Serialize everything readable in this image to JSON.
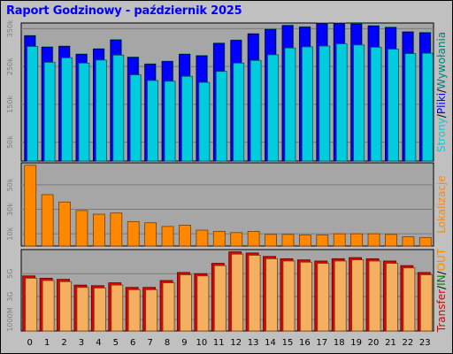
{
  "title": "Raport Godzinowy -  październik 2025",
  "colors": {
    "background": "#c0c0c0",
    "plot_bg": "#a6a6a6",
    "strony": "#00ccdd",
    "pliki": "#0000ff",
    "wywolania": "#008080",
    "lokalizacje": "#ff8800",
    "transfer": "#e00000",
    "in": "#008000",
    "out": "#ff8800",
    "transfer_bar": "#f4b060"
  },
  "legend_top": [
    {
      "text": "Strony",
      "color": "#00ccdd"
    },
    {
      "text": "/",
      "color": "#000000"
    },
    {
      "text": "Pliki",
      "color": "#0000ff"
    },
    {
      "text": "/",
      "color": "#000000"
    },
    {
      "text": "Wywołania",
      "color": "#008080"
    }
  ],
  "legend_mid": [
    {
      "text": "Lokalizacje",
      "color": "#ff8800"
    }
  ],
  "legend_bot": [
    {
      "text": "Transfer",
      "color": "#e00000"
    },
    {
      "text": "/",
      "color": "#000000"
    },
    {
      "text": "IN",
      "color": "#008000"
    },
    {
      "text": "/",
      "color": "#000000"
    },
    {
      "text": "OUT",
      "color": "#ff8800"
    }
  ],
  "chart_data": [
    {
      "type": "bar",
      "panel": "top",
      "categories": [
        "0",
        "1",
        "2",
        "3",
        "4",
        "5",
        "6",
        "7",
        "8",
        "9",
        "10",
        "11",
        "12",
        "13",
        "14",
        "15",
        "16",
        "17",
        "18",
        "19",
        "20",
        "21",
        "22",
        "23"
      ],
      "yticks": [
        "50k",
        "150k",
        "250k",
        "350k"
      ],
      "ylim": [
        0,
        365000
      ],
      "series": [
        {
          "name": "Wywołania",
          "values": [
            333000,
            303000,
            305000,
            284000,
            298000,
            322000,
            276000,
            258000,
            265000,
            284000,
            280000,
            313000,
            321000,
            338000,
            350000,
            360000,
            356000,
            366000,
            366000,
            364000,
            359000,
            355000,
            343000,
            341000
          ]
        },
        {
          "name": "Pliki",
          "values": [
            331000,
            301000,
            303000,
            282000,
            296000,
            320000,
            274000,
            256000,
            263000,
            282000,
            278000,
            311000,
            319000,
            336000,
            348000,
            358000,
            354000,
            364000,
            364000,
            362000,
            357000,
            353000,
            341000,
            339000
          ]
        },
        {
          "name": "Strony",
          "values": [
            303000,
            261000,
            273000,
            259000,
            267000,
            280000,
            228000,
            213000,
            211000,
            224000,
            208000,
            237000,
            259000,
            266000,
            281000,
            299000,
            302000,
            304000,
            310000,
            307000,
            301000,
            296000,
            284000,
            285000
          ]
        }
      ]
    },
    {
      "type": "bar",
      "panel": "middle",
      "categories": [
        "0",
        "1",
        "2",
        "3",
        "4",
        "5",
        "6",
        "7",
        "8",
        "9",
        "10",
        "11",
        "12",
        "13",
        "14",
        "15",
        "16",
        "17",
        "18",
        "19",
        "20",
        "21",
        "22",
        "23"
      ],
      "yticks": [
        "10k",
        "30k",
        "50k"
      ],
      "ylim": [
        0,
        68000
      ],
      "series": [
        {
          "name": "Lokalizacje",
          "values": [
            66000,
            42000,
            36000,
            29000,
            26000,
            27000,
            20000,
            19000,
            16000,
            17000,
            13000,
            12000,
            11000,
            12000,
            9500,
            9500,
            9000,
            9000,
            10000,
            10000,
            10000,
            9500,
            7500,
            7000
          ]
        }
      ]
    },
    {
      "type": "bar",
      "panel": "bottom",
      "categories": [
        "0",
        "1",
        "2",
        "3",
        "4",
        "5",
        "6",
        "7",
        "8",
        "9",
        "10",
        "11",
        "12",
        "13",
        "14",
        "15",
        "16",
        "17",
        "18",
        "19",
        "20",
        "21",
        "22",
        "23"
      ],
      "yticks": [
        "1000M",
        "3G",
        "5G"
      ],
      "ylim": [
        0,
        7100000000
      ],
      "series": [
        {
          "name": "Transfer",
          "values": [
            4800000000,
            4600000000,
            4500000000,
            4000000000,
            3950000000,
            4200000000,
            3800000000,
            3800000000,
            4400000000,
            5100000000,
            5000000000,
            5900000000,
            6900000000,
            6800000000,
            6500000000,
            6300000000,
            6200000000,
            6100000000,
            6300000000,
            6400000000,
            6300000000,
            6100000000,
            5700000000,
            5100000000
          ]
        },
        {
          "name": "IN",
          "values": [
            4600000000,
            4400000000,
            4300000000,
            3800000000,
            3750000000,
            4000000000,
            3600000000,
            3600000000,
            4200000000,
            4900000000,
            4800000000,
            5700000000,
            6700000000,
            6600000000,
            6300000000,
            6100000000,
            6000000000,
            5900000000,
            6100000000,
            6200000000,
            6100000000,
            5900000000,
            5500000000,
            4900000000
          ]
        }
      ]
    }
  ]
}
